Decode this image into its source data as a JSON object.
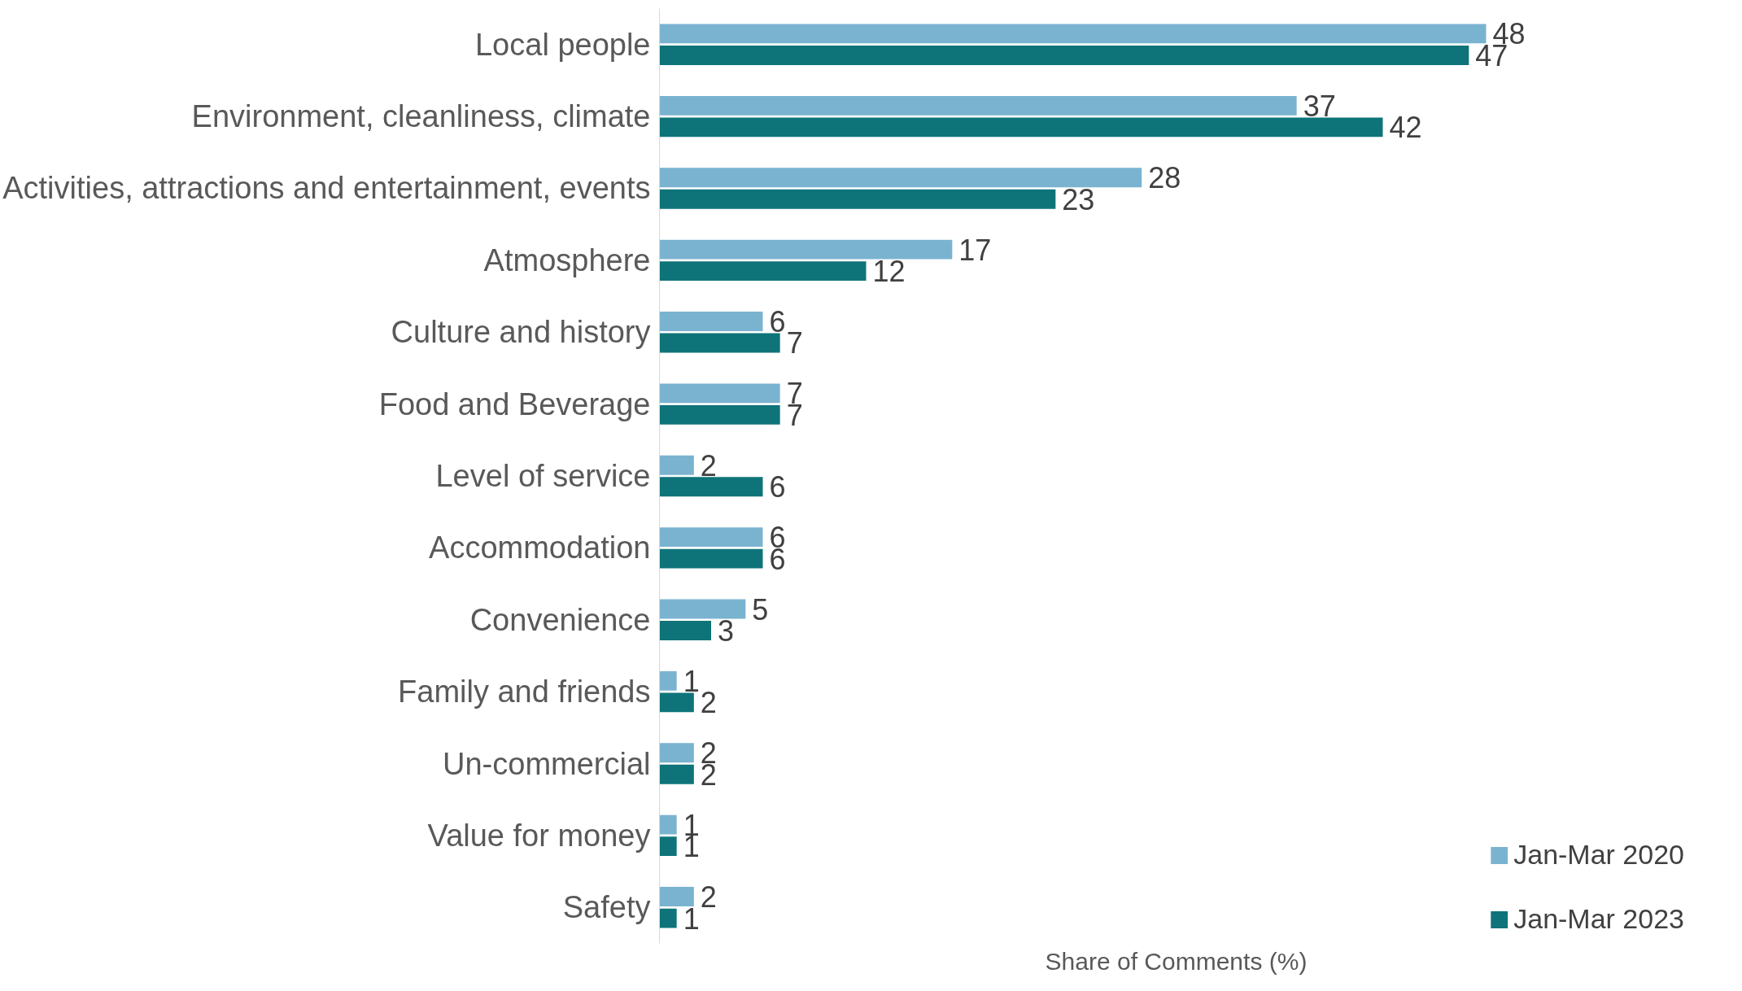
{
  "chart_data": {
    "type": "bar",
    "orientation": "horizontal",
    "xlabel": "Share of Comments (%)",
    "categories": [
      "Local people",
      "Environment, cleanliness, climate",
      "Activities, attractions and entertainment, events",
      "Atmosphere",
      "Culture and history",
      "Food and Beverage",
      "Level of service",
      "Accommodation",
      "Convenience",
      "Family and friends",
      "Un-commercial",
      "Value for money",
      "Safety"
    ],
    "series": [
      {
        "name": "Jan-Mar 2020",
        "color": "#7ab3d0",
        "values": [
          48,
          37,
          28,
          17,
          6,
          7,
          2,
          6,
          5,
          1,
          2,
          1,
          2
        ]
      },
      {
        "name": "Jan-Mar 2023",
        "color": "#0e7479",
        "values": [
          47,
          42,
          23,
          12,
          7,
          7,
          6,
          6,
          3,
          2,
          2,
          1,
          1
        ]
      }
    ],
    "data_labels": true,
    "grid": false,
    "legend": "bottom right",
    "tick_labels": "y"
  }
}
